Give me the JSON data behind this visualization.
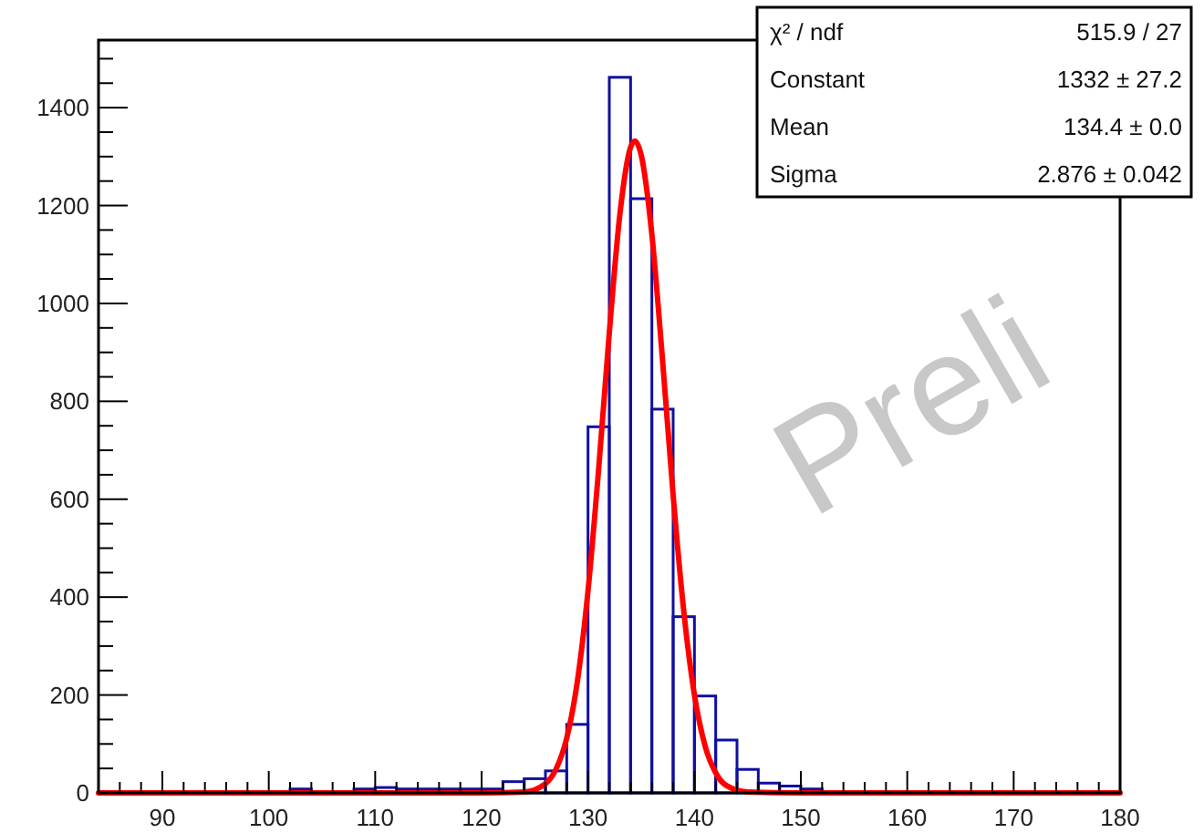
{
  "chart_data": {
    "type": "histogram",
    "bins": [
      84,
      86,
      88,
      90,
      92,
      94,
      96,
      98,
      100,
      102,
      104,
      106,
      108,
      110,
      112,
      114,
      116,
      118,
      120,
      122,
      124,
      126,
      128,
      130,
      132,
      134,
      136,
      138,
      140,
      142,
      144,
      146,
      148,
      150,
      152,
      154,
      156,
      158,
      160,
      162,
      164,
      166,
      168,
      170,
      172,
      174,
      176,
      178,
      180
    ],
    "series": [
      {
        "color": "#1010a0",
        "values": [
          0,
          0,
          0,
          0,
          0,
          0,
          0,
          0,
          0,
          8,
          0,
          0,
          8,
          11,
          8,
          8,
          8,
          8,
          8,
          23,
          29,
          45,
          140,
          748,
          1462,
          1214,
          784,
          360,
          198,
          108,
          48,
          20,
          14,
          8,
          0,
          0,
          0,
          0,
          0,
          0,
          0,
          0,
          0,
          0,
          0,
          0,
          0,
          0
        ]
      },
      {
        "type": "line",
        "color": "#ff0000",
        "x": [
          84,
          120,
          124,
          126,
          127,
          128,
          129,
          130,
          131,
          132,
          133,
          134,
          134.4,
          135,
          136,
          137,
          138,
          139,
          140,
          141,
          142,
          143,
          145,
          150,
          180
        ],
        "values": [
          0,
          0,
          2,
          19,
          49,
          112,
          228,
          413,
          662,
          940,
          1183,
          1319,
          1332,
          1303,
          1141,
          885,
          608,
          371,
          200,
          96,
          41,
          15,
          2,
          0,
          0
        ]
      }
    ],
    "xlim": [
      84,
      180
    ],
    "ylim": [
      0,
      1538
    ],
    "xticks": [
      {
        "value": 86,
        "label": null
      },
      {
        "value": 88,
        "label": null
      },
      90,
      {
        "value": 92,
        "label": null
      },
      {
        "value": 94,
        "label": null
      },
      {
        "value": 96,
        "label": null
      },
      {
        "value": 98,
        "label": null
      },
      100,
      {
        "value": 102,
        "label": null
      },
      {
        "value": 104,
        "label": null
      },
      {
        "value": 106,
        "label": null
      },
      {
        "value": 108,
        "label": null
      },
      110,
      {
        "value": 112,
        "label": null
      },
      {
        "value": 114,
        "label": null
      },
      {
        "value": 116,
        "label": null
      },
      {
        "value": 118,
        "label": null
      },
      120,
      {
        "value": 122,
        "label": null
      },
      {
        "value": 124,
        "label": null
      },
      {
        "value": 126,
        "label": null
      },
      {
        "value": 128,
        "label": null
      },
      130,
      {
        "value": 132,
        "label": null
      },
      {
        "value": 134,
        "label": null
      },
      {
        "value": 136,
        "label": null
      },
      {
        "value": 138,
        "label": null
      },
      140,
      {
        "value": 142,
        "label": null
      },
      {
        "value": 144,
        "label": null
      },
      {
        "value": 146,
        "label": null
      },
      {
        "value": 148,
        "label": null
      },
      150,
      {
        "value": 152,
        "label": null
      },
      {
        "value": 154,
        "label": null
      },
      {
        "value": 156,
        "label": null
      },
      {
        "value": 158,
        "label": null
      },
      160,
      {
        "value": 162,
        "label": null
      },
      {
        "value": 164,
        "label": null
      },
      {
        "value": 166,
        "label": null
      },
      {
        "value": 168,
        "label": null
      },
      170,
      {
        "value": 172,
        "label": null
      },
      {
        "value": 174,
        "label": null
      },
      {
        "value": 176,
        "label": null
      },
      {
        "value": 178,
        "label": null
      },
      180
    ],
    "yticks": [
      0,
      {
        "value": 50,
        "label": null
      },
      {
        "value": 100,
        "label": null
      },
      {
        "value": 150,
        "label": null
      },
      200,
      {
        "value": 250,
        "label": null
      },
      {
        "value": 300,
        "label": null
      },
      {
        "value": 350,
        "label": null
      },
      400,
      {
        "value": 450,
        "label": null
      },
      {
        "value": 500,
        "label": null
      },
      {
        "value": 550,
        "label": null
      },
      600,
      {
        "value": 650,
        "label": null
      },
      {
        "value": 700,
        "label": null
      },
      {
        "value": 750,
        "label": null
      },
      800,
      {
        "value": 850,
        "label": null
      },
      {
        "value": 900,
        "label": null
      },
      {
        "value": 950,
        "label": null
      },
      1000,
      {
        "value": 1050,
        "label": null
      },
      {
        "value": 1100,
        "label": null
      },
      {
        "value": 1150,
        "label": null
      },
      1200,
      {
        "value": 1250,
        "label": null
      },
      {
        "value": 1300,
        "label": null
      },
      {
        "value": 1350,
        "label": null
      },
      1400,
      {
        "value": 1450,
        "label": null
      },
      {
        "value": 1500,
        "label": null
      }
    ],
    "annotations": [
      "χ² / ndf",
      "515.9 / 27",
      "Constant",
      "1332  ± 27.2",
      "Mean",
      "134.4  ± 0.0",
      "Sigma",
      "2.876  ± 0.042",
      "Preli"
    ]
  }
}
